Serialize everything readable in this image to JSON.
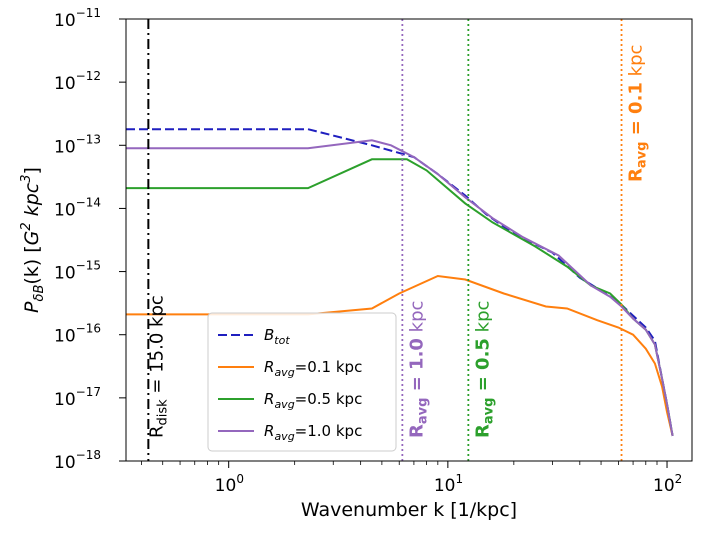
{
  "chart_data": {
    "type": "line",
    "xscale": "log",
    "yscale": "log",
    "xlim": [
      0.34,
      130
    ],
    "ylim": [
      1e-18,
      1e-11
    ],
    "xlabel": "Wavenumber k [1/kpc]",
    "ylabel": "P_{δB}(k) [G^2 kpc^3]",
    "ylabel_parts": {
      "P": "P",
      "sub": "δB",
      "mid": "(k) [",
      "G": "G",
      "sup1": "2",
      "kpc": " kpc",
      "sup2": "3",
      "end": "]"
    },
    "x_ticks": [
      {
        "value": 1,
        "base": "10",
        "exp": "0"
      },
      {
        "value": 10,
        "base": "10",
        "exp": "1"
      },
      {
        "value": 100,
        "base": "10",
        "exp": "2"
      }
    ],
    "y_ticks": [
      {
        "value": 1e-18,
        "base": "10",
        "exp": "−18"
      },
      {
        "value": 1e-17,
        "base": "10",
        "exp": "−17"
      },
      {
        "value": 1e-16,
        "base": "10",
        "exp": "−16"
      },
      {
        "value": 1e-15,
        "base": "10",
        "exp": "−15"
      },
      {
        "value": 1e-14,
        "base": "10",
        "exp": "−14"
      },
      {
        "value": 1e-13,
        "base": "10",
        "exp": "−13"
      },
      {
        "value": 1e-12,
        "base": "10",
        "exp": "−12"
      },
      {
        "value": 1e-11,
        "base": "10",
        "exp": "−11"
      }
    ],
    "series": [
      {
        "name": "B_tot",
        "legend": {
          "main": "B",
          "sub": "tot",
          "rest": ""
        },
        "color": "#1f1fbf",
        "style": "dashed",
        "x": [
          0.34,
          2.3,
          4.5,
          7.0,
          9.0,
          12.0,
          15.0,
          20.0,
          30.0,
          40.0,
          50.0,
          60.0,
          70.0,
          80.0,
          88.0,
          95.0,
          100.0,
          106.0
        ],
        "y": [
          1.8e-13,
          1.8e-13,
          1e-13,
          6.5e-14,
          3.5e-14,
          1.6e-14,
          8e-15,
          4e-15,
          2e-15,
          8e-16,
          5e-16,
          3.3e-16,
          2e-16,
          1.3e-16,
          8e-17,
          2e-17,
          8e-18,
          2.5e-18
        ]
      },
      {
        "name": "R_avg=0.1 kpc",
        "legend": {
          "main": "R",
          "sub": "avg",
          "rest": "=0.1 kpc"
        },
        "color": "#ff7f0e",
        "style": "solid",
        "x": [
          0.34,
          2.3,
          4.5,
          6.0,
          9.0,
          12.0,
          18.0,
          28.0,
          35.0,
          48.0,
          60.0,
          70.0,
          80.0,
          88.0,
          95.0,
          100.0,
          106.0
        ],
        "y": [
          2.1e-16,
          2.1e-16,
          2.6e-16,
          4.5e-16,
          8.5e-16,
          7.5e-16,
          4.5e-16,
          2.8e-16,
          2.6e-16,
          1.7e-16,
          1.3e-16,
          1e-16,
          6e-17,
          3.5e-17,
          1.5e-17,
          6e-18,
          2.5e-18
        ]
      },
      {
        "name": "R_avg=0.5 kpc",
        "legend": {
          "main": "R",
          "sub": "avg",
          "rest": "=0.5 kpc"
        },
        "color": "#2ca02c",
        "style": "solid",
        "x": [
          0.34,
          2.3,
          4.5,
          6.5,
          8.0,
          12.0,
          16.0,
          25.0,
          35.0,
          45.0,
          55.0,
          62.0,
          70.0,
          80.0,
          88.0,
          95.0,
          100.0,
          106.0
        ],
        "y": [
          2.1e-14,
          2.1e-14,
          6e-14,
          6e-14,
          4e-14,
          1.2e-14,
          6e-15,
          2.5e-15,
          1.2e-15,
          6e-16,
          4.5e-16,
          3e-16,
          1.8e-16,
          1.2e-16,
          7e-17,
          2e-17,
          8e-18,
          2.5e-18
        ]
      },
      {
        "name": "R_avg=1.0 kpc",
        "legend": {
          "main": "R",
          "sub": "avg",
          "rest": "=1.0 kpc"
        },
        "color": "#9467bd",
        "style": "solid",
        "x": [
          0.34,
          2.3,
          4.5,
          5.5,
          7.0,
          9.0,
          12.0,
          16.0,
          22.0,
          32.0,
          45.0,
          55.0,
          62.0,
          70.0,
          80.0,
          88.0,
          95.0,
          100.0,
          106.0
        ],
        "y": [
          9e-14,
          9e-14,
          1.2e-13,
          1e-13,
          6.5e-14,
          3.5e-14,
          1.5e-14,
          7e-15,
          3.5e-15,
          1.8e-15,
          6e-16,
          4e-16,
          2.8e-16,
          1.8e-16,
          1.2e-16,
          7e-17,
          2e-17,
          8e-18,
          2.5e-18
        ]
      }
    ],
    "vlines": [
      {
        "name": "R_disk",
        "x": 0.43,
        "color": "#000000",
        "style": "dashdot",
        "label": {
          "prefix": "R",
          "sub": "disk",
          "value": " = 15.0",
          "unit": " kpc"
        }
      },
      {
        "name": "R_avg_1.0",
        "x": 6.2,
        "color": "#9467bd",
        "style": "dotted",
        "label": {
          "prefix": "R",
          "sub": "avg",
          "value": " = 1.0",
          "unit": " kpc"
        }
      },
      {
        "name": "R_avg_0.5",
        "x": 12.4,
        "color": "#2ca02c",
        "style": "dotted",
        "label": {
          "prefix": "R",
          "sub": "avg",
          "value": " = 0.5",
          "unit": " kpc"
        }
      },
      {
        "name": "R_avg_0.1",
        "x": 62.0,
        "color": "#ff7f0e",
        "style": "dotted",
        "label": {
          "prefix": "R",
          "sub": "avg",
          "value": " = 0.1",
          "unit": " kpc"
        }
      }
    ],
    "legend_position": "lower-center-left"
  }
}
